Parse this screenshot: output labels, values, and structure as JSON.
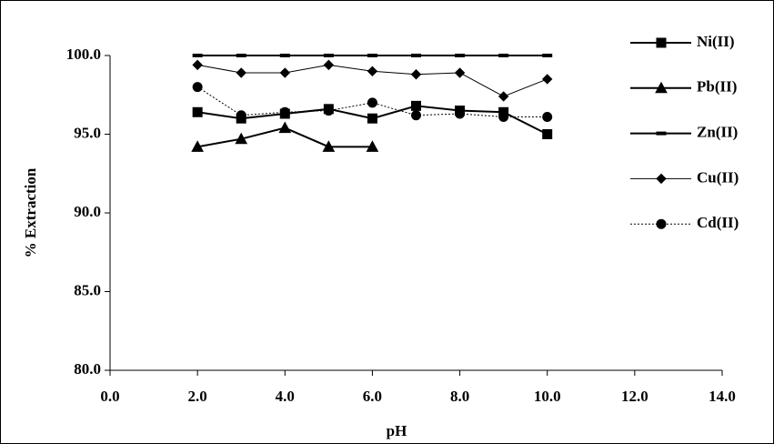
{
  "chart_data": {
    "type": "line",
    "x_label": "pH",
    "y_label": "% Extraction",
    "x": [
      2,
      3,
      4,
      5,
      6,
      7,
      8,
      9,
      10
    ],
    "series": [
      {
        "name": "Ni(II)",
        "color": "#000000",
        "marker": "square",
        "dash": "solid",
        "values": [
          96.4,
          96.0,
          96.3,
          96.6,
          96.0,
          96.8,
          96.5,
          96.4,
          95.0
        ]
      },
      {
        "name": "Pb(II)",
        "color": "#000000",
        "marker": "triangle",
        "dash": "solid",
        "values": [
          94.2,
          94.7,
          95.4,
          94.2,
          94.2,
          null,
          null,
          null,
          null
        ]
      },
      {
        "name": "Zn(II)",
        "color": "#000000",
        "marker": "dash",
        "dash": "solid",
        "values": [
          100.0,
          100.0,
          100.0,
          100.0,
          100.0,
          100.0,
          100.0,
          100.0,
          100.0
        ]
      },
      {
        "name": "Cu(II)",
        "color": "#000000",
        "marker": "diamond",
        "dash": "thin",
        "values": [
          99.4,
          98.9,
          98.9,
          99.4,
          99.0,
          98.8,
          98.9,
          97.4,
          98.5
        ]
      },
      {
        "name": "Cd(II)",
        "color": "#000000",
        "marker": "circle",
        "dash": "dotted",
        "values": [
          98.0,
          96.2,
          96.4,
          96.5,
          97.0,
          96.2,
          96.3,
          96.1,
          96.1
        ]
      }
    ],
    "xlim": [
      0,
      14
    ],
    "xticks": [
      {
        "value": 0,
        "label": "0.0"
      },
      {
        "value": 2,
        "label": "2.0"
      },
      {
        "value": 4,
        "label": "4.0"
      },
      {
        "value": 6,
        "label": "6.0"
      },
      {
        "value": 8,
        "label": "8.0"
      },
      {
        "value": 10,
        "label": "10.0"
      },
      {
        "value": 12,
        "label": "12.0"
      },
      {
        "value": 14,
        "label": "14.0"
      }
    ],
    "ylim": [
      80,
      100
    ],
    "yticks": [
      {
        "value": 80,
        "label": "80.0"
      },
      {
        "value": 85,
        "label": "85.0"
      },
      {
        "value": 90,
        "label": "90.0"
      },
      {
        "value": 95,
        "label": "95.0"
      },
      {
        "value": 100,
        "label": "100.0"
      }
    ],
    "grid": false,
    "legend": "right"
  }
}
